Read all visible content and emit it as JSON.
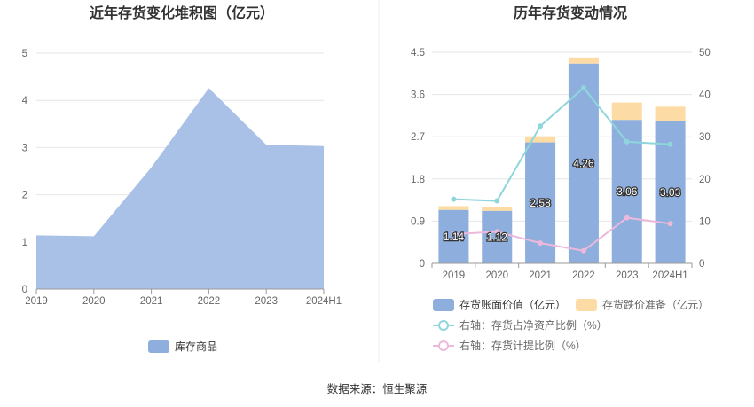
{
  "chart_data": [
    {
      "type": "area",
      "title": "近年存货变化堆积图（亿元）",
      "categories": [
        "2019",
        "2020",
        "2021",
        "2022",
        "2023",
        "2024H1"
      ],
      "series": [
        {
          "name": "库存商品",
          "values": [
            1.14,
            1.12,
            2.58,
            4.26,
            3.06,
            3.03
          ],
          "color": "#a9c1e6"
        }
      ],
      "ylim": [
        0,
        5
      ],
      "yticks": [
        "0",
        "1",
        "2",
        "3",
        "4",
        "5"
      ],
      "grid": true,
      "legend": "bottom"
    },
    {
      "type": "bar",
      "title": "历年存货变动情况",
      "categories": [
        "2019",
        "2020",
        "2021",
        "2022",
        "2023",
        "2024H1"
      ],
      "series": [
        {
          "name": "存货账面价值（亿元）",
          "type": "bar",
          "axis": "left",
          "values": [
            1.14,
            1.12,
            2.58,
            4.26,
            3.06,
            3.03
          ],
          "color": "#8eaedd"
        },
        {
          "name": "存货跌价准备（亿元）",
          "type": "bar",
          "axis": "left",
          "values": [
            0.08,
            0.09,
            0.13,
            0.13,
            0.37,
            0.31
          ],
          "color": "#fcdca4"
        },
        {
          "name": "右轴：存货占净资产比例（%）",
          "type": "line",
          "axis": "right",
          "values": [
            15.2,
            14.8,
            32.5,
            41.6,
            28.8,
            28.2
          ],
          "color": "#8fd6dc"
        },
        {
          "name": "右轴：存货计提比例（%）",
          "type": "line",
          "axis": "right",
          "values": [
            6.9,
            7.5,
            4.8,
            3.0,
            10.8,
            9.4
          ],
          "color": "#ecb9dc"
        }
      ],
      "data_labels": [
        "1.14",
        "1.12",
        "2.58",
        "4.26",
        "3.06",
        "3.03"
      ],
      "ylim_left": [
        0,
        4.5
      ],
      "yticks_left": [
        "0",
        "0.9",
        "1.8",
        "2.7",
        "3.6",
        "4.5"
      ],
      "ylim_right": [
        0,
        50
      ],
      "yticks_right": [
        "0",
        "10",
        "20",
        "30",
        "40",
        "50"
      ],
      "grid": true,
      "legend": "bottom"
    }
  ],
  "footer": {
    "source": "数据来源：恒生聚源"
  }
}
